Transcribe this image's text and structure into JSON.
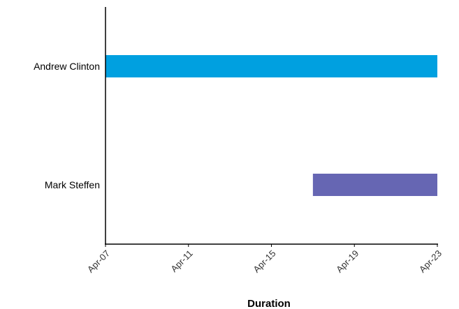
{
  "chart_data": {
    "type": "bar",
    "orientation": "horizontal",
    "title": "",
    "xlabel": "Duration",
    "ylabel": "",
    "grid": false,
    "legend": "none",
    "x_ticks": [
      "Apr-07",
      "Apr-11",
      "Apr-15",
      "Apr-19",
      "Apr-23"
    ],
    "xlim": [
      "2023-04-07",
      "2023-04-23"
    ],
    "bars": [
      {
        "category": "Andrew Clinton",
        "start": "2023-04-07",
        "end": "2023-04-23",
        "color": "#00a0e0"
      },
      {
        "category": "Mark Steffen",
        "start": "2023-04-17",
        "end": "2023-04-23",
        "color": "#6666b3"
      }
    ]
  }
}
